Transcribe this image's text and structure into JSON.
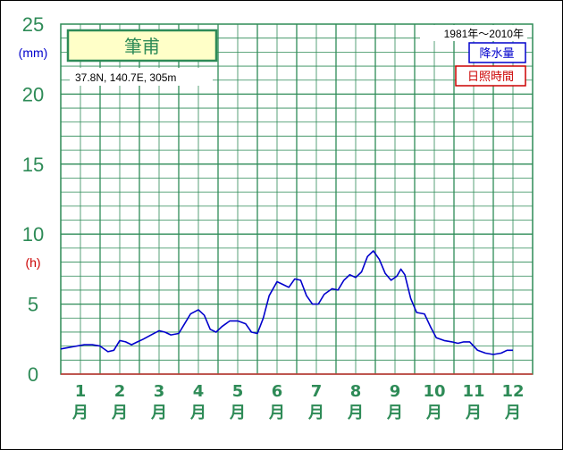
{
  "chart_data": {
    "type": "line",
    "station": "筆甫",
    "location": "37.8N,  140.7E,  305m",
    "period": "1981年〜2010年",
    "legend": [
      {
        "name": "降水量",
        "color": "#0000cc"
      },
      {
        "name": "日照時間",
        "color": "#cc0000"
      }
    ],
    "y_units": {
      "precip": "(mm)",
      "sun": "(h)"
    },
    "yticks": [
      0,
      5,
      10,
      15,
      20,
      25
    ],
    "ylim": [
      0,
      25
    ],
    "xlim": [
      0.5,
      12.5
    ],
    "months": [
      {
        "num": "1",
        "unit": "月"
      },
      {
        "num": "2",
        "unit": "月"
      },
      {
        "num": "3",
        "unit": "月"
      },
      {
        "num": "4",
        "unit": "月"
      },
      {
        "num": "5",
        "unit": "月"
      },
      {
        "num": "6",
        "unit": "月"
      },
      {
        "num": "7",
        "unit": "月"
      },
      {
        "num": "8",
        "unit": "月"
      },
      {
        "num": "9",
        "unit": "月"
      },
      {
        "num": "10",
        "unit": "月"
      },
      {
        "num": "11",
        "unit": "月"
      },
      {
        "num": "12",
        "unit": "月"
      }
    ],
    "series": [
      {
        "name": "降水量",
        "color": "#0000cc",
        "points": [
          [
            0.5,
            1.8
          ],
          [
            0.7,
            1.9
          ],
          [
            0.9,
            2.0
          ],
          [
            1.1,
            2.1
          ],
          [
            1.3,
            2.1
          ],
          [
            1.5,
            2.0
          ],
          [
            1.7,
            1.6
          ],
          [
            1.85,
            1.7
          ],
          [
            2.0,
            2.4
          ],
          [
            2.15,
            2.3
          ],
          [
            2.3,
            2.1
          ],
          [
            2.45,
            2.3
          ],
          [
            2.6,
            2.5
          ],
          [
            2.8,
            2.8
          ],
          [
            3.0,
            3.1
          ],
          [
            3.15,
            3.0
          ],
          [
            3.3,
            2.8
          ],
          [
            3.5,
            2.9
          ],
          [
            3.65,
            3.6
          ],
          [
            3.8,
            4.3
          ],
          [
            4.0,
            4.6
          ],
          [
            4.15,
            4.2
          ],
          [
            4.3,
            3.2
          ],
          [
            4.45,
            3.0
          ],
          [
            4.6,
            3.4
          ],
          [
            4.8,
            3.8
          ],
          [
            5.0,
            3.8
          ],
          [
            5.2,
            3.6
          ],
          [
            5.35,
            3.0
          ],
          [
            5.5,
            2.9
          ],
          [
            5.65,
            4.0
          ],
          [
            5.8,
            5.6
          ],
          [
            6.0,
            6.6
          ],
          [
            6.15,
            6.4
          ],
          [
            6.3,
            6.2
          ],
          [
            6.45,
            6.8
          ],
          [
            6.6,
            6.7
          ],
          [
            6.75,
            5.6
          ],
          [
            6.9,
            5.0
          ],
          [
            7.05,
            5.0
          ],
          [
            7.2,
            5.7
          ],
          [
            7.4,
            6.1
          ],
          [
            7.55,
            6.0
          ],
          [
            7.7,
            6.7
          ],
          [
            7.85,
            7.1
          ],
          [
            8.0,
            6.9
          ],
          [
            8.15,
            7.3
          ],
          [
            8.3,
            8.4
          ],
          [
            8.45,
            8.8
          ],
          [
            8.6,
            8.2
          ],
          [
            8.75,
            7.2
          ],
          [
            8.9,
            6.7
          ],
          [
            9.05,
            7.0
          ],
          [
            9.15,
            7.5
          ],
          [
            9.25,
            7.1
          ],
          [
            9.4,
            5.4
          ],
          [
            9.55,
            4.4
          ],
          [
            9.75,
            4.3
          ],
          [
            9.9,
            3.4
          ],
          [
            10.05,
            2.6
          ],
          [
            10.25,
            2.4
          ],
          [
            10.45,
            2.3
          ],
          [
            10.6,
            2.2
          ],
          [
            10.75,
            2.3
          ],
          [
            10.9,
            2.3
          ],
          [
            11.1,
            1.7
          ],
          [
            11.3,
            1.5
          ],
          [
            11.5,
            1.4
          ],
          [
            11.7,
            1.5
          ],
          [
            11.85,
            1.7
          ],
          [
            12.0,
            1.7
          ]
        ]
      }
    ]
  }
}
